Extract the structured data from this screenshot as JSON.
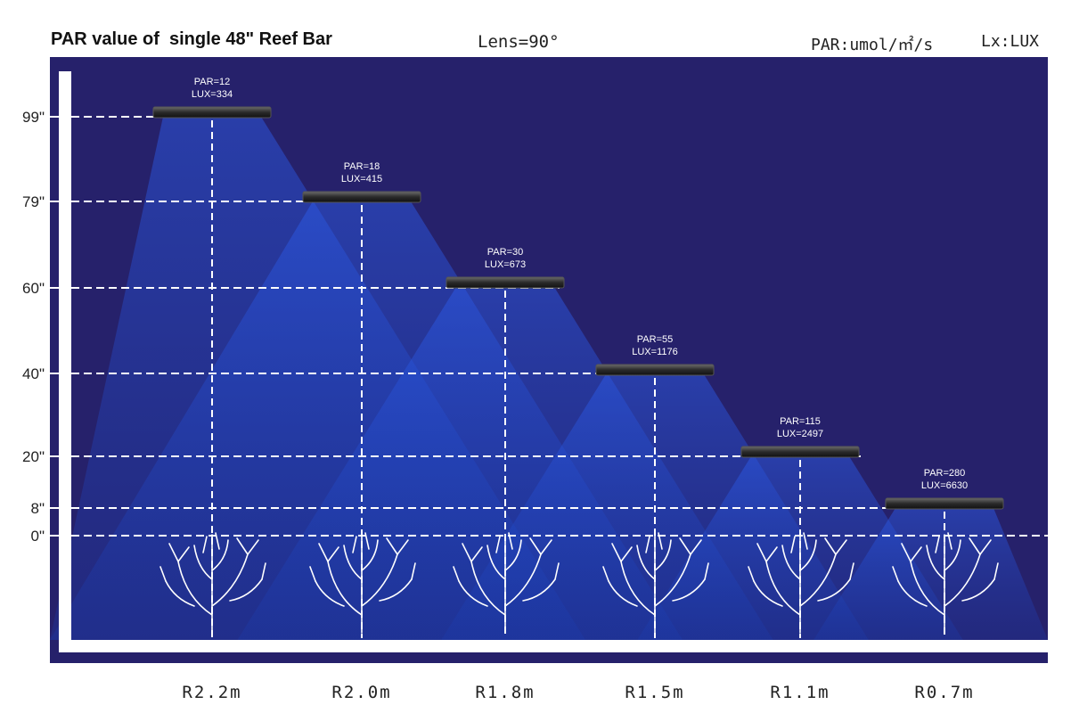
{
  "header": {
    "title": "PAR value of  single 48\" Reef Bar",
    "lens": "Lens=90°",
    "par_unit": "PAR:umol/㎡/s",
    "lux_unit": "Lx:LUX"
  },
  "colors": {
    "background": "#26216b",
    "beam": "#1f4fd6",
    "axis": "#ffffff",
    "frame": "#ffffff"
  },
  "height_labels": [
    "99\"",
    "79\"",
    "60\"",
    "40\"",
    "20\"",
    "8\"",
    "0\""
  ],
  "lights": [
    {
      "par": "PAR=12",
      "lux": "LUX=334",
      "radius": "R2.2m",
      "height": "99\""
    },
    {
      "par": "PAR=18",
      "lux": "LUX=415",
      "radius": "R2.0m",
      "height": "79\""
    },
    {
      "par": "PAR=30",
      "lux": "LUX=673",
      "radius": "R1.8m",
      "height": "60\""
    },
    {
      "par": "PAR=55",
      "lux": "LUX=1176",
      "radius": "R1.5m",
      "height": "40\""
    },
    {
      "par": "PAR=115",
      "lux": "LUX=2497",
      "radius": "R1.1m",
      "height": "20\""
    },
    {
      "par": "PAR=280",
      "lux": "LUX=6630",
      "radius": "R0.7m",
      "height": "8\""
    }
  ],
  "icons": {
    "light": "reef-bar-light-icon",
    "coral": "coral-icon"
  }
}
